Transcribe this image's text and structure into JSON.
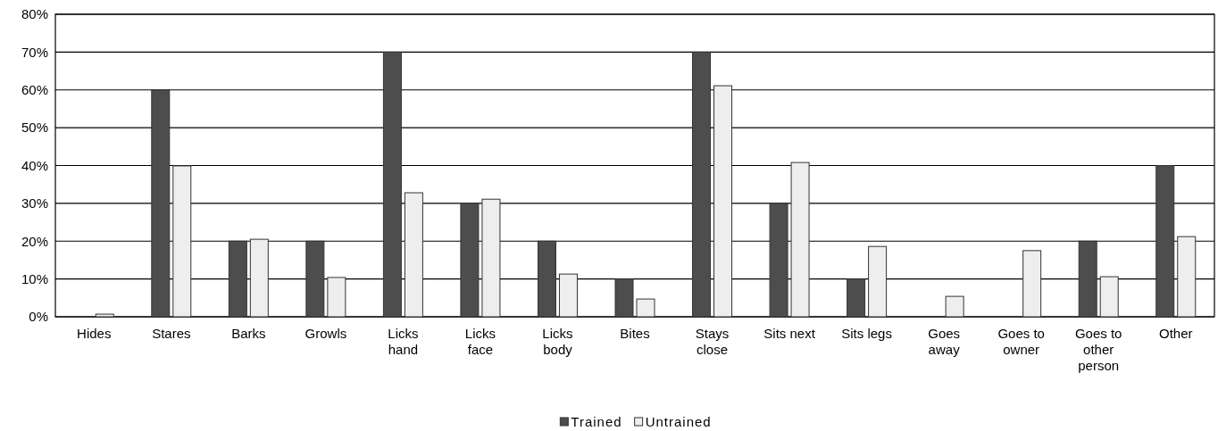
{
  "chart_data": {
    "type": "bar",
    "categories": [
      "Hides",
      "Stares",
      "Barks",
      "Growls",
      "Licks\nhand",
      "Licks\nface",
      "Licks\nbody",
      "Bites",
      "Stays\nclose",
      "Sits next",
      "Sits legs",
      "Goes\naway",
      "Goes to\nowner",
      "Goes to\nother\nperson",
      "Other"
    ],
    "series": [
      {
        "name": "Trained",
        "color": "#4d4d4d",
        "values": [
          0,
          60,
          20,
          20,
          70,
          30,
          20,
          10,
          70,
          30,
          10,
          0,
          0,
          20,
          40
        ]
      },
      {
        "name": "Untrained",
        "color": "#eeeeee",
        "values": [
          0.7,
          39.9,
          20.5,
          10.4,
          32.8,
          31.1,
          11.3,
          4.7,
          61.1,
          40.8,
          18.6,
          5.4,
          17.5,
          10.6,
          21.2
        ]
      }
    ],
    "ylim": [
      0,
      80
    ],
    "yticks": [
      {
        "value": 0,
        "label": "0%"
      },
      {
        "value": 10,
        "label": "10%"
      },
      {
        "value": 20,
        "label": "20%"
      },
      {
        "value": 30,
        "label": "30%"
      },
      {
        "value": 40,
        "label": "40%"
      },
      {
        "value": 50,
        "label": "50%"
      },
      {
        "value": 60,
        "label": "60%"
      },
      {
        "value": 70,
        "label": "70%"
      },
      {
        "value": 80,
        "label": "80%"
      }
    ],
    "grid": "y",
    "legend": "bottom"
  }
}
